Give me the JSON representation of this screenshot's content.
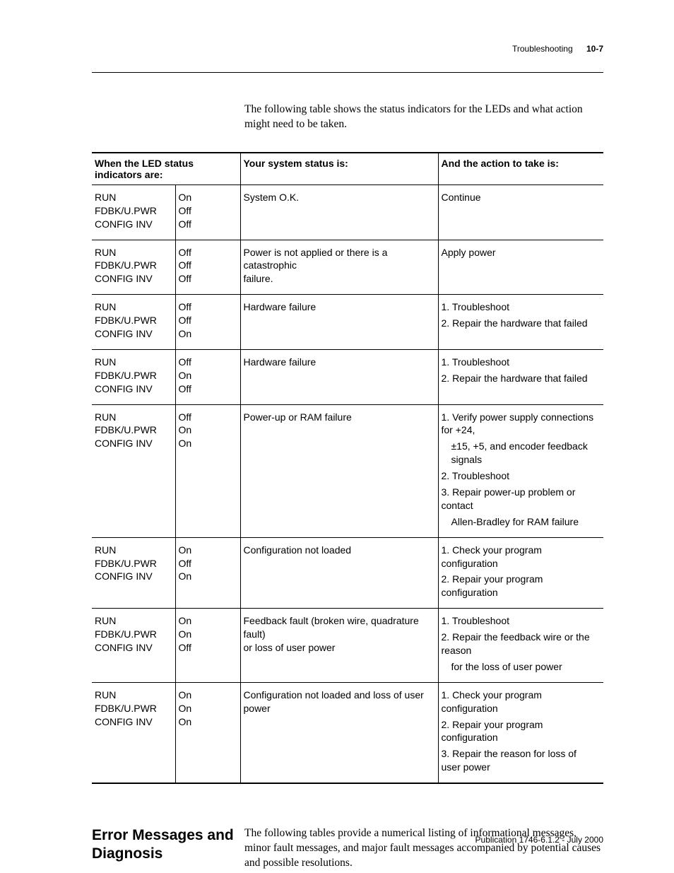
{
  "header": {
    "chapter": "Troubleshooting",
    "pagenum": "10-7"
  },
  "intro": "The following table shows the status indicators for the LEDs and what action might need to be taken.",
  "table": {
    "head": {
      "c1": "When the LED status indicators are:",
      "c3": "Your system status is:",
      "c4": "And the action to take is:"
    },
    "rows": [
      {
        "led": [
          "RUN",
          "FDBK/U.PWR",
          "CONFIG INV"
        ],
        "state": [
          "On",
          "Off",
          "Off"
        ],
        "status": [
          "System O.K."
        ],
        "action": [
          "Continue"
        ]
      },
      {
        "led": [
          "RUN",
          "FDBK/U.PWR",
          "CONFIG INV"
        ],
        "state": [
          "Off",
          "Off",
          "Off"
        ],
        "status": [
          "Power is not applied or there is a",
          "catastrophic",
          "failure."
        ],
        "action": [
          "Apply power"
        ]
      },
      {
        "led": [
          "RUN",
          "FDBK/U.PWR",
          "CONFIG INV"
        ],
        "state": [
          "Off",
          "Off",
          "On"
        ],
        "status": [
          "Hardware failure"
        ],
        "action": [
          "1. Troubleshoot",
          "2. Repair the hardware that failed"
        ]
      },
      {
        "led": [
          "RUN",
          "FDBK/U.PWR",
          "CONFIG INV"
        ],
        "state": [
          "Off",
          "On",
          "Off"
        ],
        "status": [
          "Hardware failure"
        ],
        "action": [
          "1. Troubleshoot",
          "2. Repair the hardware that failed"
        ]
      },
      {
        "led": [
          "RUN",
          "FDBK/U.PWR",
          "CONFIG INV"
        ],
        "state": [
          "Off",
          "On",
          "On"
        ],
        "status": [
          "Power-up or RAM failure"
        ],
        "action": [
          "1. Verify power supply connections for +24,",
          "    ±15, +5, and encoder feedback signals",
          "2. Troubleshoot",
          "3. Repair power-up problem or contact",
          "    Allen-Bradley for RAM failure"
        ]
      },
      {
        "led": [
          "RUN",
          "FDBK/U.PWR",
          "CONFIG INV"
        ],
        "state": [
          "On",
          "Off",
          "On"
        ],
        "status": [
          "Configuration not loaded"
        ],
        "action": [
          "1. Check your program configuration",
          "2. Repair your program configuration"
        ]
      },
      {
        "led": [
          "RUN",
          "FDBK/U.PWR",
          "CONFIG INV"
        ],
        "state": [
          "On",
          "On",
          "Off"
        ],
        "status": [
          "Feedback fault (broken wire, quadrature",
          "fault)",
          "or loss of user power"
        ],
        "action": [
          "1. Troubleshoot",
          "2. Repair the feedback wire or the reason",
          "    for the loss of user power"
        ]
      },
      {
        "led": [
          "RUN",
          "FDBK/U.PWR",
          "CONFIG INV"
        ],
        "state": [
          "On",
          "On",
          "On"
        ],
        "status": [
          "Configuration not loaded and loss of user",
          "power"
        ],
        "action": [
          "1. Check your program configuration",
          "2. Repair your program configuration",
          "3. Repair the reason for loss of user power"
        ]
      }
    ]
  },
  "section": {
    "heading": "Error Messages and Diagnosis",
    "body": "The following tables provide a numerical listing of informational messages, minor fault messages, and major fault messages accompanied by potential causes and possible resolutions."
  },
  "footer": "Publication 1746-6.1.2 - July 2000"
}
